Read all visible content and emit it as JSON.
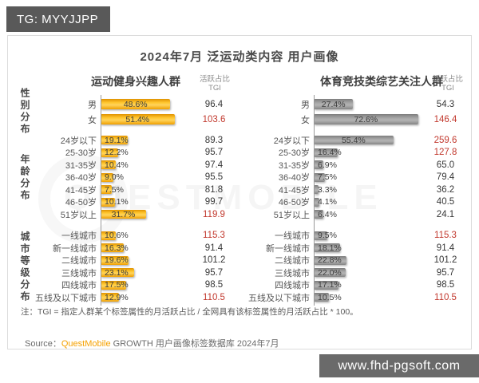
{
  "page": {
    "badge": "TG: MYYJJPP",
    "site_watermark": "www.fhd-pgsoft.com",
    "background_watermark": "QUESTMOBILE"
  },
  "report": {
    "title": "2024年7月 泛运动类内容 用户画像",
    "value_header_line1": "活跃占比",
    "value_header_line2": "TGI",
    "note": "注：TGI = 指定人群某个标签属性的月活跃占比 / 全网具有该标签属性的月活跃占比 * 100。",
    "source_label": "Source：",
    "source_brand": "QuestMobile",
    "source_text": " GROWTH 用户画像标签数据库 2024年7月"
  },
  "chart_data": {
    "type": "bar",
    "title": "2024年7月 泛运动类内容 用户画像",
    "orientation": "horizontal",
    "value_columns": [
      "活跃占比(%)",
      "TGI"
    ],
    "highlight_color": "#c2392e",
    "groups": [
      {
        "name": "性别分布",
        "categories": [
          "男",
          "女"
        ]
      },
      {
        "name": "年龄分布",
        "categories": [
          "24岁以下",
          "25-30岁",
          "31-35岁",
          "36-40岁",
          "41-45岁",
          "46-50岁",
          "51岁以上"
        ]
      },
      {
        "name": "城市等级分布",
        "categories": [
          "一线城市",
          "新一线城市",
          "二线城市",
          "三线城市",
          "四线城市",
          "五线及以下城市"
        ]
      }
    ],
    "series": [
      {
        "name": "运动健身兴趣人群",
        "bar_style": "gold",
        "bar_color": "#ffc62e",
        "share_pct": [
          48.6,
          51.4,
          19.1,
          12.2,
          10.4,
          9.0,
          7.5,
          10.1,
          31.7,
          10.6,
          16.3,
          19.6,
          23.1,
          17.5,
          12.9
        ],
        "tgi": [
          "96.4",
          "103.6",
          "89.3",
          "95.7",
          "97.4",
          "95.5",
          "81.8",
          "99.7",
          "119.9",
          "115.3",
          "91.4",
          "101.2",
          "95.7",
          "98.5",
          "110.5"
        ],
        "tgi_highlight": [
          0,
          1,
          0,
          0,
          0,
          0,
          0,
          0,
          1,
          1,
          0,
          0,
          0,
          0,
          1
        ]
      },
      {
        "name": "体育竞技类综艺关注人群",
        "bar_style": "gray",
        "bar_color": "#a8a8a8",
        "share_pct": [
          27.4,
          72.6,
          55.4,
          16.4,
          6.9,
          7.5,
          3.3,
          4.1,
          6.4,
          9.5,
          18.1,
          22.8,
          22.0,
          17.1,
          10.5
        ],
        "tgi": [
          "54.3",
          "146.4",
          "259.6",
          "127.8",
          "65.0",
          "79.4",
          "36.2",
          "40.5",
          "24.1",
          "115.3",
          "91.4",
          "101.2",
          "95.7",
          "98.5",
          "110.5"
        ],
        "tgi_highlight": [
          0,
          1,
          1,
          1,
          0,
          0,
          0,
          0,
          0,
          1,
          0,
          0,
          0,
          0,
          1
        ]
      }
    ]
  }
}
